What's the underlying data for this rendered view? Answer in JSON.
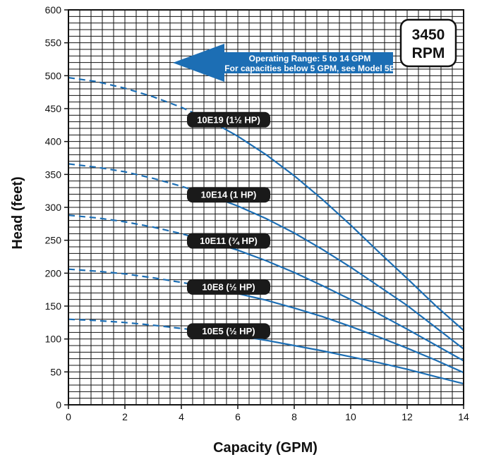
{
  "chart_data": {
    "type": "line",
    "title": "",
    "xlabel": "Capacity (GPM)",
    "ylabel": "Head (feet)",
    "xlim": [
      0,
      14
    ],
    "ylim": [
      0,
      600
    ],
    "x_ticks": [
      "0",
      "2",
      "4",
      "6",
      "8",
      "10",
      "12",
      "14"
    ],
    "y_ticks": [
      "0",
      "50",
      "100",
      "150",
      "200",
      "250",
      "300",
      "350",
      "400",
      "450",
      "500",
      "550",
      "600"
    ],
    "grid": true,
    "rpm_badge": [
      "3450",
      "RPM"
    ],
    "operating_range_note": [
      "Operating Range: 5 to 14 GPM",
      "For capacities below 5 GPM, see Model 5E"
    ],
    "series": [
      {
        "name": "10E19 (1½ HP)",
        "dashed_until_x": 5,
        "points": [
          [
            0,
            497
          ],
          [
            1,
            491
          ],
          [
            2,
            481
          ],
          [
            3,
            468
          ],
          [
            4,
            452
          ],
          [
            5,
            432
          ],
          [
            6,
            408
          ],
          [
            7,
            380
          ],
          [
            8,
            348
          ],
          [
            9,
            312
          ],
          [
            10,
            273
          ],
          [
            11,
            232
          ],
          [
            12,
            192
          ],
          [
            13,
            151
          ],
          [
            14,
            113
          ]
        ]
      },
      {
        "name": "10E14 (1 HP)",
        "dashed_until_x": 5,
        "points": [
          [
            0,
            366
          ],
          [
            1,
            361
          ],
          [
            2,
            354
          ],
          [
            3,
            344
          ],
          [
            4,
            332
          ],
          [
            5,
            318
          ],
          [
            6,
            302
          ],
          [
            7,
            283
          ],
          [
            8,
            261
          ],
          [
            9,
            236
          ],
          [
            10,
            209
          ],
          [
            11,
            180
          ],
          [
            12,
            151
          ],
          [
            13,
            118
          ],
          [
            14,
            85
          ]
        ]
      },
      {
        "name": "10E11 (¾ HP)",
        "dashed_until_x": 5,
        "points": [
          [
            0,
            288
          ],
          [
            1,
            284
          ],
          [
            2,
            278
          ],
          [
            3,
            270
          ],
          [
            4,
            260
          ],
          [
            5,
            248
          ],
          [
            6,
            235
          ],
          [
            7,
            219
          ],
          [
            8,
            201
          ],
          [
            9,
            181
          ],
          [
            10,
            160
          ],
          [
            11,
            138
          ],
          [
            12,
            115
          ],
          [
            13,
            91
          ],
          [
            14,
            67
          ]
        ]
      },
      {
        "name": "10E8 (½ HP)",
        "dashed_until_x": 5,
        "points": [
          [
            0,
            206
          ],
          [
            1,
            203
          ],
          [
            2,
            199
          ],
          [
            3,
            193
          ],
          [
            4,
            186
          ],
          [
            5,
            178
          ],
          [
            6,
            169
          ],
          [
            7,
            159
          ],
          [
            8,
            147
          ],
          [
            9,
            134
          ],
          [
            10,
            119
          ],
          [
            11,
            103
          ],
          [
            12,
            86
          ],
          [
            13,
            68
          ],
          [
            14,
            49
          ]
        ]
      },
      {
        "name": "10E5 (½ HP)",
        "dashed_until_x": 5,
        "points": [
          [
            0,
            130
          ],
          [
            1,
            128
          ],
          [
            2,
            125
          ],
          [
            3,
            121
          ],
          [
            4,
            116
          ],
          [
            5,
            111
          ],
          [
            6,
            105
          ],
          [
            7,
            98
          ],
          [
            8,
            90
          ],
          [
            9,
            82
          ],
          [
            10,
            73
          ],
          [
            11,
            64
          ],
          [
            12,
            54
          ],
          [
            13,
            43
          ],
          [
            14,
            32
          ]
        ]
      }
    ],
    "colors": {
      "curve": "#1c6eb4",
      "arrow": "#1c6eb4",
      "label_bg": "#1a1a1a",
      "grid": "#111111"
    }
  }
}
